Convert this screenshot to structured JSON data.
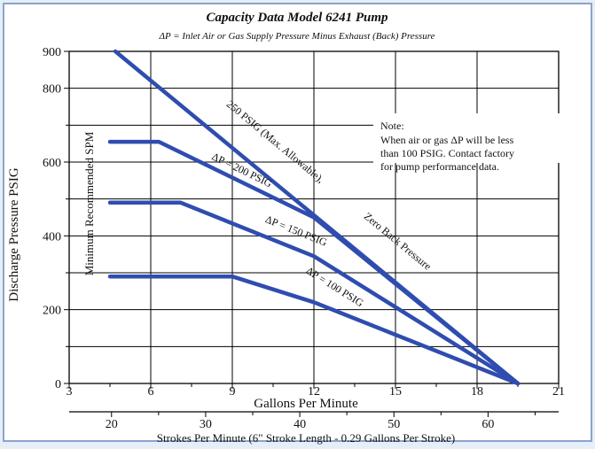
{
  "chart_data": {
    "type": "line",
    "title": "Capacity Data Model 6241 Pump",
    "subtitle": "ΔP = Inlet Air or Gas Supply Pressure Minus Exhaust (Back) Pressure",
    "xlabel": "Gallons Per Minute",
    "ylabel": "Discharge Pressure PSIG",
    "x2label": "Strokes Per Minute (6\" Stroke Length - 0.29 Gallons Per Stroke)",
    "xlim": [
      3,
      21
    ],
    "ylim": [
      0,
      900
    ],
    "x2lim": [
      15.5,
      67.5
    ],
    "x_ticks": [
      3,
      6,
      9,
      12,
      15,
      18,
      21
    ],
    "x_minor_ticks": [
      4.5,
      7.5,
      10.5,
      13.5,
      16.5,
      19.5
    ],
    "y_ticks": [
      0,
      200,
      400,
      600,
      800,
      900
    ],
    "y_minor_ticks": [
      100,
      300,
      500,
      700
    ],
    "x2_ticks": [
      20,
      30,
      40,
      50,
      60
    ],
    "x2_minor_ticks": [
      25,
      35,
      45,
      55,
      65
    ],
    "grid": true,
    "line_color": "#2f4db0",
    "series": [
      {
        "name": "250 PSIG (Max. Allowable), Zero Back Pressure",
        "x": [
          4.7,
          19.5
        ],
        "y": [
          900,
          0
        ]
      },
      {
        "name": "ΔP = 200 PSIG",
        "x": [
          4.5,
          6.3,
          12,
          19.5
        ],
        "y": [
          655,
          655,
          450,
          0
        ]
      },
      {
        "name": "ΔP = 150 PSIG",
        "x": [
          4.5,
          7.1,
          12,
          19.5
        ],
        "y": [
          490,
          490,
          345,
          0
        ]
      },
      {
        "name": "ΔP = 100 PSIG",
        "x": [
          4.5,
          9,
          12,
          19.5
        ],
        "y": [
          290,
          290,
          220,
          0
        ]
      }
    ],
    "annotations": [
      {
        "text": "250 PSIG (Max. Allowable),",
        "x": 10.5,
        "y": 648
      },
      {
        "text": "Zero Back Pressure",
        "x": 15.0,
        "y": 378
      },
      {
        "text": "ΔP = 200 PSIG",
        "x": 9.3,
        "y": 570
      },
      {
        "text": "ΔP = 150 PSIG",
        "x": 11.3,
        "y": 405
      },
      {
        "text": "ΔP = 100 PSIG",
        "x": 12.7,
        "y": 254
      }
    ],
    "vertical_note": "Minimum Recommended SPM",
    "note": {
      "title": "Note:",
      "lines": [
        "When air or gas ΔP will be less",
        "than 100 PSIG. Contact factory",
        "for pump performance data."
      ]
    }
  }
}
